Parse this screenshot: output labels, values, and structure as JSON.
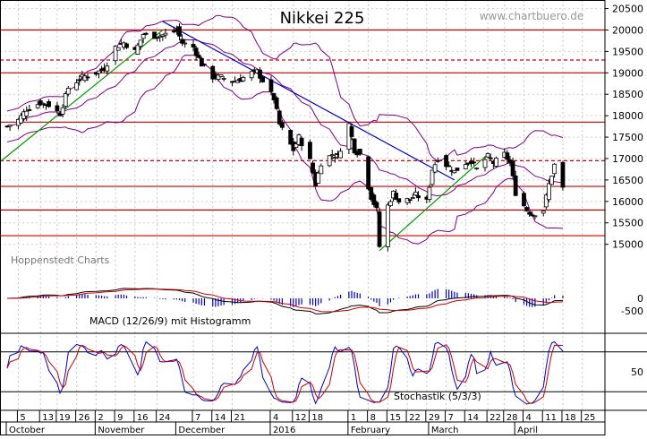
{
  "chart_data": {
    "type": "candlestick",
    "title": "Nikkei 225",
    "watermark": "www.chartbuero.de",
    "credit": "Hoppenstedt Charts",
    "main": {
      "ylim": [
        14700,
        20700
      ],
      "yticks": [
        15000,
        15500,
        16000,
        16500,
        17000,
        17500,
        18000,
        18500,
        19000,
        19500,
        20000,
        20500
      ],
      "support_resistance_solid": [
        20000,
        19000,
        17850,
        16350,
        15800,
        15200
      ],
      "support_resistance_dashed": [
        19300,
        16950
      ],
      "trendlines": [
        {
          "color": "#0000cc",
          "from": [
            "2015-11-26",
            20200
          ],
          "to": [
            "2016-03-10",
            16500
          ]
        },
        {
          "color": "#009900",
          "from": [
            "2015-09-28",
            16900
          ],
          "to": [
            "2015-11-26",
            20000
          ]
        },
        {
          "color": "#009900",
          "from": [
            "2016-02-12",
            14850
          ],
          "to": [
            "2016-03-22",
            17100
          ]
        }
      ],
      "close_series": [
        [
          "2015-10-01",
          17750
        ],
        [
          "2015-10-05",
          17900
        ],
        [
          "2015-10-08",
          18150
        ],
        [
          "2015-10-13",
          18300
        ],
        [
          "2015-10-16",
          18250
        ],
        [
          "2015-10-20",
          18050
        ],
        [
          "2015-10-23",
          18650
        ],
        [
          "2015-10-28",
          18900
        ],
        [
          "2015-11-02",
          19000
        ],
        [
          "2015-11-05",
          19100
        ],
        [
          "2015-11-09",
          19600
        ],
        [
          "2015-11-12",
          19700
        ],
        [
          "2015-11-16",
          19500
        ],
        [
          "2015-11-19",
          19900
        ],
        [
          "2015-11-24",
          19850
        ],
        [
          "2015-11-27",
          19900
        ],
        [
          "2015-12-01",
          20000
        ],
        [
          "2015-12-03",
          19700
        ],
        [
          "2015-12-07",
          19600
        ],
        [
          "2015-12-10",
          19200
        ],
        [
          "2015-12-14",
          18900
        ],
        [
          "2015-12-17",
          18900
        ],
        [
          "2015-12-21",
          18800
        ],
        [
          "2015-12-24",
          18850
        ],
        [
          "2015-12-28",
          19000
        ],
        [
          "2015-12-30",
          19030
        ],
        [
          "2016-01-05",
          18400
        ],
        [
          "2016-01-07",
          17800
        ],
        [
          "2016-01-12",
          17200
        ],
        [
          "2016-01-14",
          17500
        ],
        [
          "2016-01-18",
          16950
        ],
        [
          "2016-01-20",
          16400
        ],
        [
          "2016-01-22",
          16900
        ],
        [
          "2016-01-26",
          17100
        ],
        [
          "2016-01-28",
          17050
        ],
        [
          "2016-02-01",
          17800
        ],
        [
          "2016-02-03",
          17200
        ],
        [
          "2016-02-05",
          17100
        ],
        [
          "2016-02-09",
          16100
        ],
        [
          "2016-02-11",
          15800
        ],
        [
          "2016-02-12",
          14950
        ],
        [
          "2016-02-15",
          15900
        ],
        [
          "2016-02-17",
          16200
        ],
        [
          "2016-02-19",
          16000
        ],
        [
          "2016-02-23",
          16050
        ],
        [
          "2016-02-25",
          16150
        ],
        [
          "2016-02-29",
          16000
        ],
        [
          "2016-03-02",
          16750
        ],
        [
          "2016-03-04",
          17000
        ],
        [
          "2016-03-08",
          16800
        ],
        [
          "2016-03-10",
          16700
        ],
        [
          "2016-03-14",
          16900
        ],
        [
          "2016-03-16",
          16950
        ],
        [
          "2016-03-18",
          16750
        ],
        [
          "2016-03-22",
          17050
        ],
        [
          "2016-03-24",
          16900
        ],
        [
          "2016-03-28",
          17100
        ],
        [
          "2016-03-30",
          16900
        ],
        [
          "2016-04-01",
          16200
        ],
        [
          "2016-04-05",
          15800
        ],
        [
          "2016-04-07",
          15700
        ],
        [
          "2016-04-11",
          15800
        ],
        [
          "2016-04-13",
          16400
        ],
        [
          "2016-04-15",
          16850
        ],
        [
          "2016-04-18",
          16300
        ]
      ]
    },
    "macd": {
      "label": "MACD (12/26/9) mit Histogramm",
      "yticks": [
        0,
        -500
      ]
    },
    "stochastic": {
      "label": "Stochastik (5/3/3)",
      "yticks": [
        50
      ],
      "levels": [
        80,
        20
      ]
    },
    "x_axis": {
      "day_labels": [
        "5",
        "13",
        "19",
        "26",
        "2",
        "9",
        "16",
        "24",
        "7",
        "14",
        "21",
        "4",
        "12",
        "18",
        "1",
        "8",
        "15",
        "22",
        "29",
        "7",
        "14",
        "22",
        "28",
        "4",
        "11",
        "18",
        "25"
      ],
      "month_labels": [
        "October",
        "November",
        "December",
        "2016",
        "February",
        "March",
        "April"
      ]
    },
    "colors": {
      "up": "#ffffff",
      "down": "#000000",
      "bands": "#800080",
      "macd": "#000000",
      "signal": "#cc0000",
      "histogram": "#0000cc",
      "stoch_k": "#0000cc",
      "stoch_d": "#cc0000",
      "sr_line": "#cc0000"
    }
  }
}
